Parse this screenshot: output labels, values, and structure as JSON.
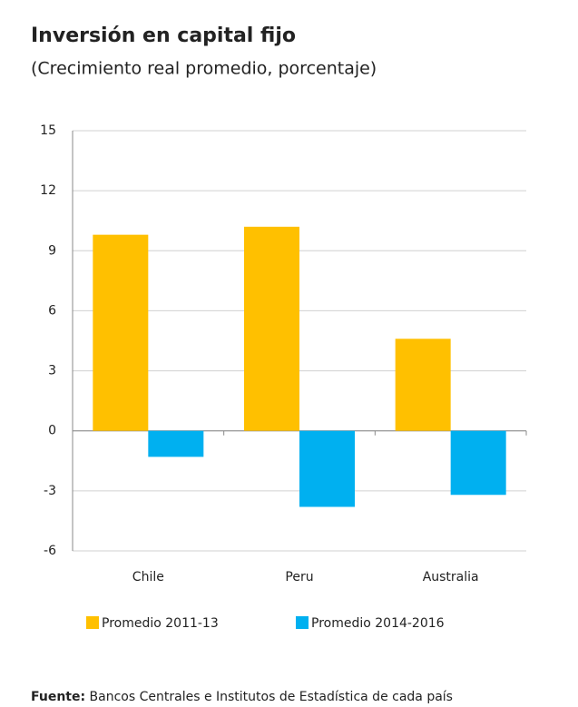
{
  "chart_data": {
    "type": "bar",
    "title": "Inversión en capital fijo",
    "subtitle": "(Crecimiento real promedio, porcentaje)",
    "categories": [
      "Chile",
      "Peru",
      "Australia"
    ],
    "series": [
      {
        "name": "Promedio 2011-13",
        "color": "#ffc000",
        "values": [
          9.8,
          10.2,
          4.6
        ]
      },
      {
        "name": "Promedio 2014-2016",
        "color": "#00b0f0",
        "values": [
          -1.3,
          -3.8,
          -3.2
        ]
      }
    ],
    "ylim": [
      -6,
      15
    ],
    "yticks": [
      -6,
      -3,
      0,
      3,
      6,
      9,
      12,
      15
    ],
    "grid": true,
    "legend": "bottom",
    "source_label": "Fuente:",
    "source_text": "Bancos Centrales e Institutos de Estadística de cada país"
  }
}
